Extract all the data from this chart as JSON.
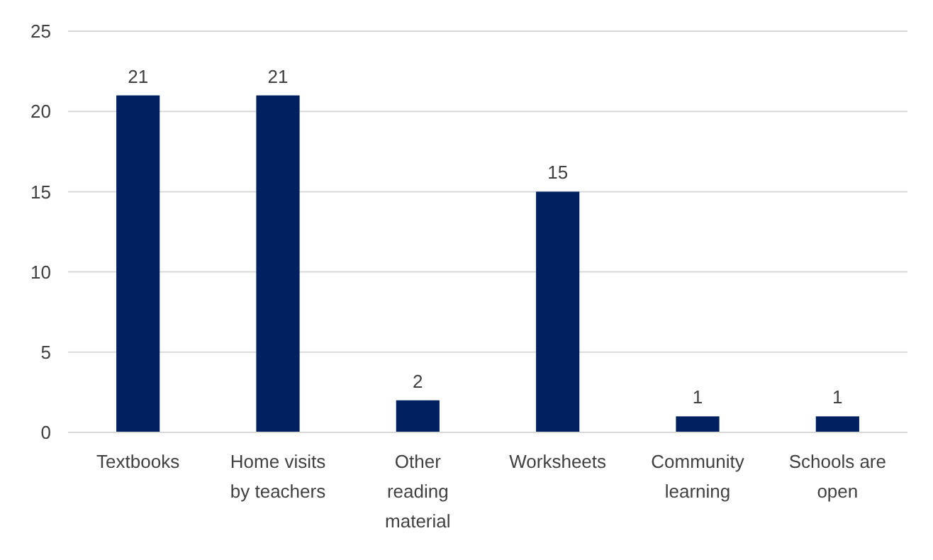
{
  "chart_data": {
    "type": "bar",
    "categories": [
      "Textbooks",
      "Home visits by teachers",
      "Other reading material",
      "Worksheets",
      "Community learning",
      "Schools are open"
    ],
    "values": [
      21,
      21,
      2,
      15,
      1,
      1
    ],
    "color": "#002060",
    "ylim": [
      0,
      25
    ],
    "yticks": [
      0,
      5,
      10,
      15,
      20,
      25
    ],
    "grid": "y",
    "data_labels": true
  }
}
